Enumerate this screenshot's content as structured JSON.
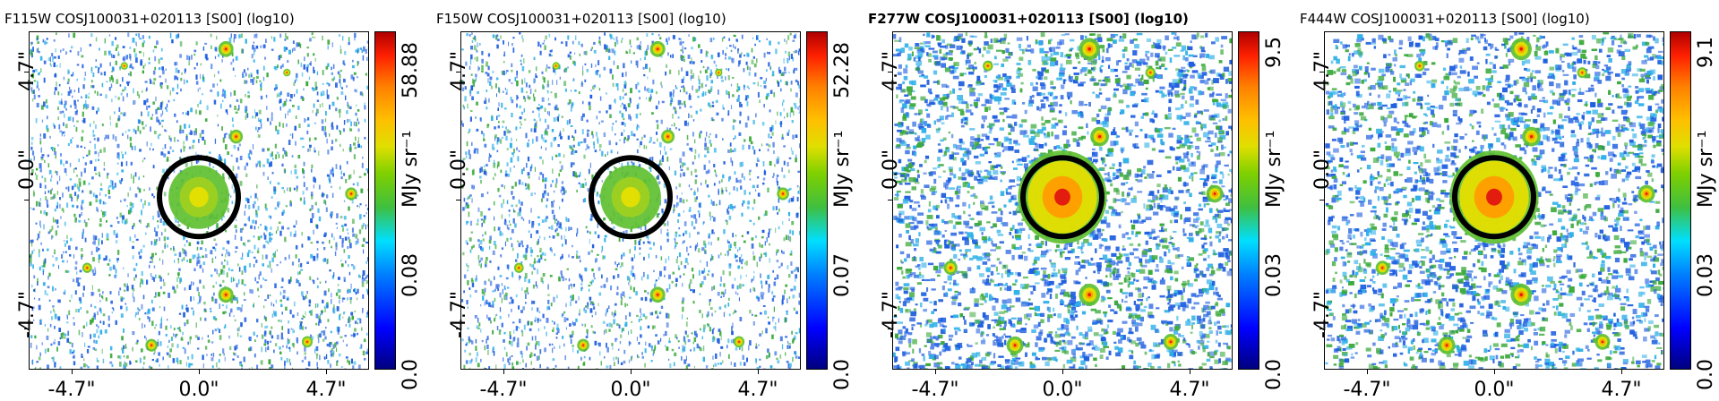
{
  "panels": [
    {
      "title": "F115W COSJ100031+020113 [S00] (log10)",
      "bold": false,
      "xticks": [
        "-4.7\"",
        "0.0\"",
        "4.7\""
      ],
      "yticks": [
        "-4.7\"",
        "0.0\"",
        "4.7\""
      ],
      "cbar_min": "0.0",
      "cbar_mid": "0.08",
      "cbar_max": "58.88",
      "cbar_unit": "MJy sr⁻¹"
    },
    {
      "title": "F150W COSJ100031+020113 [S00] (log10)",
      "bold": false,
      "xticks": [
        "-4.7\"",
        "0.0\"",
        "4.7\""
      ],
      "yticks": [
        "-4.7\"",
        "0.0\"",
        "4.7\""
      ],
      "cbar_min": "0.0",
      "cbar_mid": "0.07",
      "cbar_max": "52.28",
      "cbar_unit": "MJy sr⁻¹"
    },
    {
      "title": "F277W COSJ100031+020113 [S00] (log10)",
      "bold": true,
      "xticks": [
        "-4.7\"",
        "0.0\"",
        "4.7\""
      ],
      "yticks": [
        "-4.7\"",
        "0.0\"",
        "4.7\""
      ],
      "cbar_min": "0.0",
      "cbar_mid": "0.03",
      "cbar_max": "9.5",
      "cbar_unit": "MJy sr⁻¹"
    },
    {
      "title": "F444W COSJ100031+020113 [S00] (log10)",
      "bold": false,
      "xticks": [
        "-4.7\"",
        "0.0\"",
        "4.7\""
      ],
      "yticks": [
        "-4.7\"",
        "0.0\"",
        "4.7\""
      ],
      "cbar_min": "0.0",
      "cbar_mid": "0.03",
      "cbar_max": "9.1",
      "cbar_unit": "MJy sr⁻¹"
    }
  ],
  "colors": {
    "noise_blue": "#1f5fe0",
    "noise_cyan": "#2fb0e8",
    "noise_green": "#3caa3c",
    "source_green": "#5fc030",
    "source_yellow": "#e8e000",
    "source_orange": "#ff9a00",
    "source_red": "#e01010",
    "aperture": "#000000"
  },
  "colormap": "jet"
}
